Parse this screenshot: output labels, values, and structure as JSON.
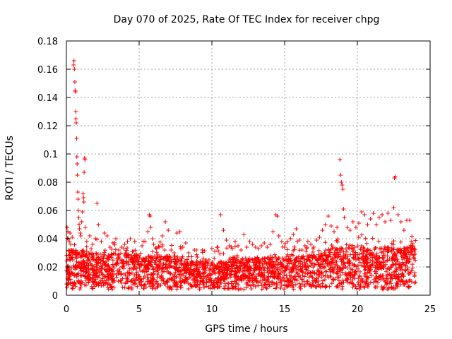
{
  "chart_data": {
    "type": "scatter",
    "title": "Day 070 of 2025, Rate Of TEC Index for receiver chpg",
    "xlabel": "GPS time / hours",
    "ylabel": "ROTI / TECUs",
    "xlim": [
      0,
      25
    ],
    "ylim": [
      0,
      0.18
    ],
    "xticks": [
      0,
      5,
      10,
      15,
      20,
      25
    ],
    "xtick_labels": [
      "0",
      "5",
      "10",
      "15",
      "20",
      "25"
    ],
    "yticks": [
      0,
      0.02,
      0.04,
      0.06,
      0.08,
      0.1,
      0.12,
      0.14,
      0.16,
      0.18
    ],
    "ytick_labels": [
      "0",
      "0.02",
      "0.04",
      "0.06",
      "0.08",
      "0.1",
      "0.12",
      "0.14",
      "0.16",
      "0.18"
    ],
    "grid": true,
    "marker": "+",
    "marker_color": "#ff0000",
    "series": [
      {
        "name": "ROTI",
        "points": [
          [
            0.05,
            0.048
          ],
          [
            0.1,
            0.045
          ],
          [
            0.15,
            0.04
          ],
          [
            0.2,
            0.038
          ],
          [
            0.25,
            0.044
          ],
          [
            0.3,
            0.036
          ],
          [
            0.35,
            0.032
          ],
          [
            0.4,
            0.041
          ],
          [
            0.45,
            0.029
          ],
          [
            0.5,
            0.163
          ],
          [
            0.52,
            0.166
          ],
          [
            0.55,
            0.16
          ],
          [
            0.58,
            0.151
          ],
          [
            0.6,
            0.145
          ],
          [
            0.62,
            0.144
          ],
          [
            0.65,
            0.13
          ],
          [
            0.66,
            0.125
          ],
          [
            0.68,
            0.122
          ],
          [
            0.7,
            0.111
          ],
          [
            0.72,
            0.098
          ],
          [
            0.74,
            0.093
          ],
          [
            0.75,
            0.085
          ],
          [
            0.78,
            0.073
          ],
          [
            0.8,
            0.068
          ],
          [
            0.82,
            0.06
          ],
          [
            0.85,
            0.055
          ],
          [
            0.88,
            0.05
          ],
          [
            0.9,
            0.047
          ],
          [
            0.95,
            0.044
          ],
          [
            1.0,
            0.042
          ],
          [
            1.05,
            0.052
          ],
          [
            1.1,
            0.059
          ],
          [
            1.15,
            0.072
          ],
          [
            1.18,
            0.069
          ],
          [
            1.2,
            0.066
          ],
          [
            1.22,
            0.087
          ],
          [
            1.25,
            0.097
          ],
          [
            1.28,
            0.096
          ],
          [
            1.3,
            0.048
          ],
          [
            1.4,
            0.038
          ],
          [
            1.6,
            0.042
          ],
          [
            1.8,
            0.036
          ],
          [
            2.0,
            0.04
          ],
          [
            2.1,
            0.065
          ],
          [
            2.2,
            0.05
          ],
          [
            2.4,
            0.038
          ],
          [
            2.6,
            0.044
          ],
          [
            2.8,
            0.042
          ],
          [
            3.0,
            0.034
          ],
          [
            3.2,
            0.037
          ],
          [
            3.4,
            0.04
          ],
          [
            3.6,
            0.032
          ],
          [
            3.8,
            0.034
          ],
          [
            4.0,
            0.036
          ],
          [
            4.2,
            0.038
          ],
          [
            4.4,
            0.04
          ],
          [
            4.6,
            0.031
          ],
          [
            4.8,
            0.029
          ],
          [
            5.0,
            0.028
          ],
          [
            5.2,
            0.035
          ],
          [
            5.4,
            0.038
          ],
          [
            5.6,
            0.045
          ],
          [
            5.7,
            0.057
          ],
          [
            5.75,
            0.056
          ],
          [
            5.8,
            0.048
          ],
          [
            5.9,
            0.04
          ],
          [
            6.0,
            0.036
          ],
          [
            6.2,
            0.033
          ],
          [
            6.4,
            0.034
          ],
          [
            6.6,
            0.042
          ],
          [
            6.8,
            0.052
          ],
          [
            7.0,
            0.046
          ],
          [
            7.2,
            0.032
          ],
          [
            7.4,
            0.03
          ],
          [
            7.6,
            0.044
          ],
          [
            7.8,
            0.045
          ],
          [
            8.0,
            0.034
          ],
          [
            8.2,
            0.037
          ],
          [
            8.4,
            0.03
          ],
          [
            8.6,
            0.024
          ],
          [
            8.8,
            0.032
          ],
          [
            9.0,
            0.027
          ],
          [
            9.2,
            0.024
          ],
          [
            9.4,
            0.026
          ],
          [
            9.6,
            0.025
          ],
          [
            9.8,
            0.025
          ],
          [
            10.0,
            0.033
          ],
          [
            10.2,
            0.031
          ],
          [
            10.4,
            0.034
          ],
          [
            10.6,
            0.057
          ],
          [
            10.8,
            0.046
          ],
          [
            11.0,
            0.039
          ],
          [
            11.2,
            0.035
          ],
          [
            11.4,
            0.033
          ],
          [
            11.6,
            0.038
          ],
          [
            11.8,
            0.035
          ],
          [
            12.0,
            0.032
          ],
          [
            12.2,
            0.043
          ],
          [
            12.4,
            0.034
          ],
          [
            12.6,
            0.038
          ],
          [
            12.8,
            0.036
          ],
          [
            13.0,
            0.034
          ],
          [
            13.2,
            0.033
          ],
          [
            13.4,
            0.035
          ],
          [
            13.6,
            0.037
          ],
          [
            13.8,
            0.034
          ],
          [
            14.0,
            0.036
          ],
          [
            14.2,
            0.045
          ],
          [
            14.4,
            0.057
          ],
          [
            14.5,
            0.056
          ],
          [
            14.6,
            0.042
          ],
          [
            14.8,
            0.038
          ],
          [
            15.0,
            0.034
          ],
          [
            15.2,
            0.038
          ],
          [
            15.4,
            0.04
          ],
          [
            15.6,
            0.043
          ],
          [
            15.8,
            0.047
          ],
          [
            16.0,
            0.039
          ],
          [
            16.2,
            0.032
          ],
          [
            16.4,
            0.035
          ],
          [
            16.6,
            0.038
          ],
          [
            16.8,
            0.036
          ],
          [
            17.0,
            0.034
          ],
          [
            17.2,
            0.039
          ],
          [
            17.4,
            0.041
          ],
          [
            17.6,
            0.046
          ],
          [
            17.8,
            0.05
          ],
          [
            18.0,
            0.056
          ],
          [
            18.2,
            0.049
          ],
          [
            18.4,
            0.045
          ],
          [
            18.6,
            0.048
          ],
          [
            18.8,
            0.096
          ],
          [
            18.85,
            0.085
          ],
          [
            18.9,
            0.08
          ],
          [
            18.95,
            0.078
          ],
          [
            19.0,
            0.075
          ],
          [
            19.05,
            0.061
          ],
          [
            19.1,
            0.055
          ],
          [
            19.3,
            0.048
          ],
          [
            19.5,
            0.046
          ],
          [
            19.7,
            0.052
          ],
          [
            19.9,
            0.048
          ],
          [
            20.1,
            0.051
          ],
          [
            20.3,
            0.059
          ],
          [
            20.5,
            0.057
          ],
          [
            20.7,
            0.05
          ],
          [
            20.9,
            0.054
          ],
          [
            21.1,
            0.058
          ],
          [
            21.3,
            0.05
          ],
          [
            21.5,
            0.055
          ],
          [
            21.7,
            0.057
          ],
          [
            21.9,
            0.052
          ],
          [
            22.1,
            0.058
          ],
          [
            22.3,
            0.053
          ],
          [
            22.5,
            0.062
          ],
          [
            22.55,
            0.083
          ],
          [
            22.6,
            0.084
          ],
          [
            22.8,
            0.057
          ],
          [
            23.0,
            0.052
          ],
          [
            23.2,
            0.046
          ],
          [
            23.4,
            0.053
          ],
          [
            23.6,
            0.053
          ],
          [
            23.7,
            0.038
          ],
          [
            23.8,
            0.035
          ],
          [
            23.9,
            0.032
          ]
        ]
      }
    ]
  }
}
